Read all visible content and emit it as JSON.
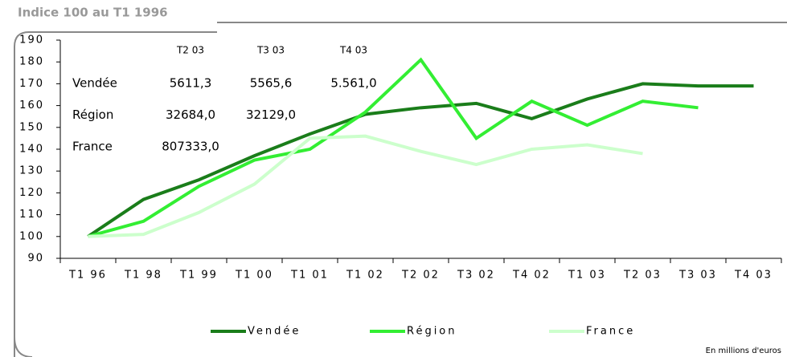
{
  "chart_data": {
    "type": "line",
    "title": "Indice 100 au T1 1996",
    "note": "En millions d'euros",
    "categories": [
      "T1 96",
      "T1 98",
      "T1 99",
      "T1 00",
      "T1 01",
      "T1 02",
      "T2 02",
      "T3 02",
      "T4 02",
      "T1 03",
      "T2 03",
      "T3 03",
      "T4 03"
    ],
    "series": [
      {
        "name": "Vendée",
        "color": "#1a7d1a",
        "values": [
          100,
          117,
          126,
          137,
          147,
          156,
          159,
          161,
          154,
          163,
          170,
          169,
          169
        ]
      },
      {
        "name": "Région",
        "color": "#33ee33",
        "values": [
          100,
          107,
          123,
          135,
          140,
          157,
          181,
          145,
          162,
          151,
          162,
          159,
          null
        ]
      },
      {
        "name": "France",
        "color": "#ccffcc",
        "values": [
          100,
          101,
          111,
          124,
          145,
          146,
          139,
          133,
          140,
          142,
          138,
          null,
          null
        ]
      }
    ],
    "ylim": [
      90,
      190
    ],
    "yticks": [
      90,
      100,
      110,
      120,
      130,
      140,
      150,
      160,
      170,
      180,
      190
    ],
    "inset_table": {
      "columns": [
        "T2 03",
        "T3 03",
        "T4 03"
      ],
      "rows": [
        {
          "label": "Vendée",
          "values": [
            "5611,3",
            "5565,6",
            "5.561,0"
          ]
        },
        {
          "label": "Région",
          "values": [
            "32684,0",
            "32129,0"
          ]
        },
        {
          "label": "France",
          "values": [
            "807333,0"
          ]
        }
      ]
    }
  }
}
